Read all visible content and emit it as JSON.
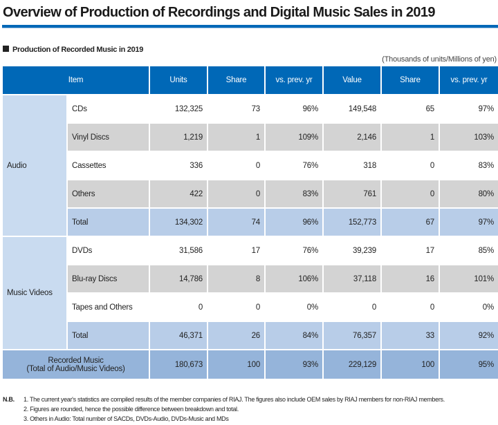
{
  "title": "Overview of Production of Recordings and Digital Music Sales in 2019",
  "subtitle": "Production of Recorded Music in 2019",
  "units_note": "(Thousands of units/Millions of yen)",
  "colors": {
    "header": "#0068b7",
    "group": "#c9dbf0",
    "alt_row": "#d3d3d3",
    "total_row": "#b8cde8",
    "grand_total_row": "#95b4da"
  },
  "headers": [
    "Item",
    "Units",
    "Share",
    "vs. prev. yr",
    "Value",
    "Share",
    "vs. prev. yr"
  ],
  "groups": [
    {
      "label": "Audio",
      "rows": [
        {
          "item": "CDs",
          "values": [
            "132,325",
            "73",
            "96%",
            "149,548",
            "65",
            "97%"
          ]
        },
        {
          "item": "Vinyl Discs",
          "values": [
            "1,219",
            "1",
            "109%",
            "2,146",
            "1",
            "103%"
          ]
        },
        {
          "item": "Cassettes",
          "values": [
            "336",
            "0",
            "76%",
            "318",
            "0",
            "83%"
          ]
        },
        {
          "item": "Others",
          "values": [
            "422",
            "0",
            "83%",
            "761",
            "0",
            "80%"
          ]
        },
        {
          "item": "Total",
          "values": [
            "134,302",
            "74",
            "96%",
            "152,773",
            "67",
            "97%"
          ]
        }
      ]
    },
    {
      "label": "Music Videos",
      "rows": [
        {
          "item": "DVDs",
          "values": [
            "31,586",
            "17",
            "76%",
            "39,239",
            "17",
            "85%"
          ]
        },
        {
          "item": "Blu-ray Discs",
          "values": [
            "14,786",
            "8",
            "106%",
            "37,118",
            "16",
            "101%"
          ]
        },
        {
          "item": "Tapes and Others",
          "values": [
            "0",
            "0",
            "0%",
            "0",
            "0",
            "0%"
          ]
        },
        {
          "item": "Total",
          "values": [
            "46,371",
            "26",
            "84%",
            "76,357",
            "33",
            "92%"
          ]
        }
      ]
    }
  ],
  "grand_total": {
    "label_line1": "Recorded Music",
    "label_line2": "(Total of Audio/Music Videos)",
    "values": [
      "180,673",
      "100",
      "93%",
      "229,129",
      "100",
      "95%"
    ]
  },
  "notes": {
    "prefix": "N.B.",
    "lines": [
      "1. The current year's statistics are compiled results of the member companies of RIAJ. The figures also include OEM sales by RIAJ members for non-RIAJ members.",
      "2. Figures are rounded, hence the possible difference between breakdown and total.",
      "3. Others in Audio: Total number of SACDs, DVDs-Audio, DVDs-Music and MDs"
    ]
  }
}
